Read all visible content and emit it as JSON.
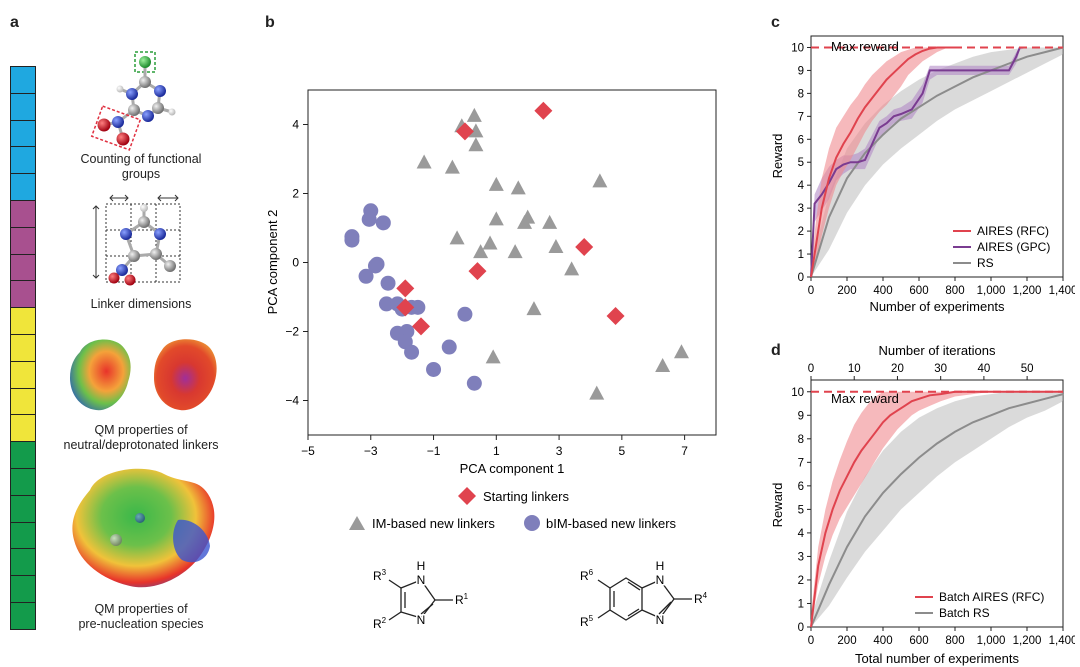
{
  "panel_labels": {
    "a": "a",
    "b": "b",
    "c": "c",
    "d": "d"
  },
  "panel_a": {
    "feature_bar": [
      {
        "group": "functional-groups",
        "color": "#1fa8e0",
        "cells": 5
      },
      {
        "group": "linker-dimensions",
        "color": "#a8508f",
        "cells": 4
      },
      {
        "group": "qm-linkers",
        "color": "#f0e53a",
        "cells": 5
      },
      {
        "group": "qm-prenucleation",
        "color": "#139b4b",
        "cells": 7
      }
    ],
    "captions": {
      "functional_groups": [
        "Counting of functional",
        "groups"
      ],
      "linker_dimensions": [
        "Linker dimensions"
      ],
      "qm_linkers": [
        "QM properties of",
        "neutral/deprotonated linkers"
      ],
      "qm_prenucleation": [
        "QM properties of",
        "pre-nucleation species"
      ]
    }
  },
  "panel_b": {
    "chart_data": {
      "type": "scatter",
      "xlabel": "PCA component 1",
      "ylabel": "PCA component 2",
      "xlim": [
        -5,
        8
      ],
      "ylim": [
        -5,
        5
      ],
      "xticks": [
        -5,
        -3,
        -1,
        1,
        3,
        5,
        7
      ],
      "yticks": [
        4,
        2,
        0,
        -2,
        -4
      ],
      "series": [
        {
          "name": "Starting linkers",
          "marker": "diamond",
          "color": "#e0434e",
          "points": [
            [
              0,
              3.8
            ],
            [
              2.5,
              4.4
            ],
            [
              3.8,
              0.45
            ],
            [
              4.8,
              -1.55
            ],
            [
              0.4,
              -0.25
            ],
            [
              -1.9,
              -0.75
            ],
            [
              -1.9,
              -1.3
            ],
            [
              -1.4,
              -1.85
            ]
          ]
        },
        {
          "name": "IM-based new linkers",
          "marker": "triangle",
          "color": "#9a9a9a",
          "points": [
            [
              -0.1,
              3.95
            ],
            [
              0.3,
              4.25
            ],
            [
              0.35,
              3.8
            ],
            [
              0.35,
              3.4
            ],
            [
              -1.3,
              2.9
            ],
            [
              -0.4,
              2.75
            ],
            [
              1.0,
              2.25
            ],
            [
              1.7,
              2.15
            ],
            [
              4.3,
              2.35
            ],
            [
              1.0,
              1.25
            ],
            [
              1.9,
              1.15
            ],
            [
              2.0,
              1.3
            ],
            [
              2.7,
              1.15
            ],
            [
              -0.25,
              0.7
            ],
            [
              0.8,
              0.55
            ],
            [
              0.5,
              0.3
            ],
            [
              1.6,
              0.3
            ],
            [
              2.9,
              0.45
            ],
            [
              3.4,
              -0.2
            ],
            [
              2.2,
              -1.35
            ],
            [
              0.9,
              -2.75
            ],
            [
              4.2,
              -3.8
            ],
            [
              6.3,
              -3.0
            ],
            [
              6.9,
              -2.6
            ]
          ]
        },
        {
          "name": "bIM-based new linkers",
          "marker": "circle",
          "color": "#7f7fbb",
          "points": [
            [
              -3.6,
              0.75
            ],
            [
              -3.6,
              0.65
            ],
            [
              -3.0,
              1.5
            ],
            [
              -3.05,
              1.25
            ],
            [
              -2.6,
              1.15
            ],
            [
              -2.8,
              -0.05
            ],
            [
              -2.85,
              -0.1
            ],
            [
              -3.15,
              -0.4
            ],
            [
              -2.45,
              -0.6
            ],
            [
              -2.5,
              -1.2
            ],
            [
              -2.15,
              -1.2
            ],
            [
              -2.0,
              -1.35
            ],
            [
              -1.7,
              -1.3
            ],
            [
              -1.5,
              -1.3
            ],
            [
              -2.15,
              -2.05
            ],
            [
              -1.85,
              -2.0
            ],
            [
              -1.9,
              -2.3
            ],
            [
              -1.7,
              -2.6
            ],
            [
              -0.5,
              -2.45
            ],
            [
              0.0,
              -1.5
            ],
            [
              -1.0,
              -3.1
            ],
            [
              0.3,
              -3.5
            ]
          ]
        }
      ],
      "legend": {
        "starting": "Starting linkers",
        "im": "IM-based new linkers",
        "bim": "bIM-based new linkers"
      }
    },
    "structures": {
      "im": {
        "R1": "R",
        "R1_sup": "1",
        "R2": "R",
        "R2_sup": "2",
        "R3": "R",
        "R3_sup": "3",
        "H": "H",
        "N_top": "N",
        "N_bottom": "N"
      },
      "bim": {
        "R4": "R",
        "R4_sup": "4",
        "R5": "R",
        "R5_sup": "5",
        "R6": "R",
        "R6_sup": "6",
        "H": "H",
        "N_top": "N",
        "N_bottom": "N"
      }
    }
  },
  "panel_c": {
    "chart_data": {
      "type": "line",
      "xlabel": "Number of experiments",
      "ylabel": "Reward",
      "xlim": [
        0,
        1400
      ],
      "ylim": [
        0,
        10.5
      ],
      "xticks": [
        0,
        200,
        400,
        600,
        800,
        1000,
        1200,
        1400
      ],
      "xtick_labels": [
        "0",
        "200",
        "400",
        "600",
        "800",
        "1,000",
        "1,200",
        "1,400"
      ],
      "yticks": [
        0,
        1,
        2,
        3,
        4,
        5,
        6,
        7,
        8,
        9,
        10
      ],
      "max_reward": {
        "value": 10,
        "label": "Max reward"
      },
      "series": [
        {
          "name": "AIRES (RFC)",
          "color": "#e0434e",
          "x": [
            0,
            30,
            60,
            100,
            140,
            180,
            220,
            260,
            300,
            340,
            380,
            420,
            460,
            500,
            540,
            580,
            620,
            660,
            700,
            760,
            820
          ],
          "y": [
            0,
            1.5,
            3.0,
            4.3,
            5.2,
            5.8,
            6.3,
            6.9,
            7.4,
            7.8,
            8.2,
            8.6,
            8.9,
            9.2,
            9.5,
            9.7,
            9.85,
            9.95,
            10,
            10,
            10
          ],
          "upper": [
            0.5,
            2.6,
            4.3,
            5.6,
            6.5,
            7.0,
            7.5,
            7.9,
            8.4,
            8.8,
            9.1,
            9.4,
            9.6,
            9.8,
            9.9,
            10,
            10,
            10,
            10,
            10,
            10
          ],
          "lower": [
            0,
            0.7,
            1.8,
            3.0,
            4.0,
            4.6,
            5.1,
            5.7,
            6.3,
            6.8,
            7.2,
            7.5,
            7.9,
            8.3,
            8.8,
            9.1,
            9.4,
            9.6,
            9.8,
            10,
            10
          ]
        },
        {
          "name": "AIRES (GPC)",
          "color": "#7a3c91",
          "x": [
            0,
            20,
            60,
            100,
            140,
            180,
            220,
            260,
            300,
            340,
            380,
            420,
            460,
            500,
            560,
            620,
            660,
            700,
            760,
            820,
            880,
            940,
            1000,
            1060,
            1100,
            1140,
            1160,
            1200
          ],
          "y": [
            0,
            3.2,
            3.6,
            4.1,
            4.7,
            4.9,
            5.0,
            5.0,
            5.1,
            5.8,
            6.5,
            6.7,
            7.0,
            7.1,
            7.3,
            8.0,
            9.0,
            9.0,
            9.0,
            9.0,
            9.0,
            9.0,
            9.0,
            9.0,
            9.0,
            9.6,
            10,
            10
          ],
          "upper": [
            0,
            3.6,
            4.3,
            4.8,
            5.1,
            5.3,
            5.3,
            5.4,
            5.6,
            6.2,
            6.8,
            7.0,
            7.3,
            7.4,
            7.7,
            8.4,
            9.2,
            9.2,
            9.2,
            9.2,
            9.2,
            9.2,
            9.2,
            9.2,
            9.2,
            9.8,
            10,
            10
          ],
          "lower": [
            0,
            2.4,
            2.9,
            3.4,
            4.2,
            4.5,
            4.7,
            4.7,
            4.7,
            5.4,
            6.1,
            6.4,
            6.7,
            6.8,
            6.9,
            7.6,
            8.6,
            8.8,
            8.8,
            8.8,
            8.8,
            8.8,
            8.8,
            8.8,
            8.8,
            9.3,
            9.9,
            10
          ]
        },
        {
          "name": "RS",
          "color": "#8c8c8c",
          "x": [
            0,
            100,
            200,
            300,
            400,
            500,
            600,
            700,
            800,
            900,
            1000,
            1100,
            1200,
            1300,
            1400
          ],
          "y": [
            0,
            2.6,
            4.3,
            5.4,
            6.2,
            6.9,
            7.4,
            7.9,
            8.3,
            8.7,
            9.0,
            9.3,
            9.6,
            9.8,
            10
          ],
          "upper": [
            0.5,
            3.6,
            5.6,
            6.7,
            7.5,
            8.1,
            8.6,
            9.0,
            9.3,
            9.6,
            9.8,
            9.9,
            10,
            10,
            10
          ],
          "lower": [
            0,
            1.2,
            2.8,
            4.0,
            4.9,
            5.6,
            6.2,
            6.8,
            7.3,
            7.7,
            8.1,
            8.5,
            8.9,
            9.3,
            9.7
          ]
        }
      ]
    }
  },
  "panel_d": {
    "chart_data": {
      "type": "line",
      "xlabel": "Total number of experiments",
      "x2label": "Number of iterations",
      "ylabel": "Reward",
      "xlim": [
        0,
        1400
      ],
      "ylim": [
        0,
        10.5
      ],
      "xticks": [
        0,
        200,
        400,
        600,
        800,
        1000,
        1200,
        1400
      ],
      "xtick_labels": [
        "0",
        "200",
        "400",
        "600",
        "800",
        "1,000",
        "1,200",
        "1,400"
      ],
      "x2ticks": [
        0,
        10,
        20,
        30,
        40,
        50
      ],
      "x2lim": [
        0,
        58.3
      ],
      "yticks": [
        0,
        1,
        2,
        3,
        4,
        5,
        6,
        7,
        8,
        9,
        10
      ],
      "max_reward": {
        "value": 10,
        "label": "Max reward"
      },
      "series": [
        {
          "name": "Batch AIRES (RFC)",
          "color": "#e0434e",
          "x": [
            0,
            40,
            80,
            120,
            160,
            200,
            240,
            280,
            320,
            360,
            400,
            440,
            480,
            520,
            560,
            600,
            660,
            720,
            800,
            900,
            1000,
            1100,
            1400
          ],
          "y": [
            0,
            2.6,
            4.0,
            5.0,
            5.8,
            6.4,
            7.0,
            7.5,
            7.9,
            8.3,
            8.7,
            9.0,
            9.2,
            9.4,
            9.6,
            9.7,
            9.85,
            9.9,
            10,
            10,
            10,
            10,
            10
          ],
          "upper": [
            0.5,
            3.4,
            5.0,
            6.2,
            7.1,
            7.9,
            8.6,
            9.1,
            9.5,
            9.8,
            10,
            10,
            10,
            10,
            10,
            10,
            10,
            10,
            10,
            10,
            10,
            10,
            10
          ],
          "lower": [
            0,
            1.8,
            3.0,
            3.9,
            4.6,
            5.1,
            5.6,
            6.1,
            6.6,
            7.1,
            7.6,
            8.0,
            8.4,
            8.7,
            9.0,
            9.2,
            9.4,
            9.6,
            9.8,
            9.9,
            10,
            10,
            10
          ]
        },
        {
          "name": "Batch RS",
          "color": "#8c8c8c",
          "x": [
            0,
            100,
            200,
            300,
            400,
            500,
            600,
            700,
            800,
            900,
            1000,
            1100,
            1200,
            1300,
            1400
          ],
          "y": [
            0,
            1.8,
            3.4,
            4.7,
            5.7,
            6.5,
            7.2,
            7.8,
            8.3,
            8.7,
            9.0,
            9.3,
            9.5,
            9.7,
            9.9
          ],
          "upper": [
            0.4,
            2.8,
            4.9,
            6.4,
            7.5,
            8.3,
            8.9,
            9.3,
            9.6,
            9.8,
            9.9,
            10,
            10,
            10,
            10
          ],
          "lower": [
            0,
            0.9,
            2.1,
            3.2,
            4.1,
            5.0,
            5.7,
            6.4,
            7.0,
            7.5,
            8.0,
            8.5,
            8.9,
            9.2,
            9.6
          ]
        }
      ]
    }
  }
}
